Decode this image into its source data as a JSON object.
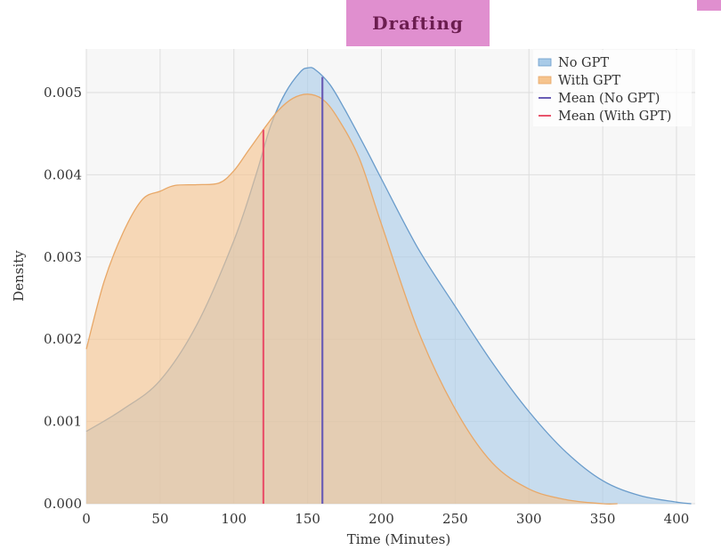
{
  "header": {
    "title": "Drafting"
  },
  "chart_data": {
    "type": "area",
    "title": "Drafting",
    "xlabel": "Time (Minutes)",
    "ylabel": "Density",
    "xlim": [
      0,
      410
    ],
    "ylim": [
      0,
      0.0055
    ],
    "x_ticks": [
      "0",
      "50",
      "100",
      "150",
      "200",
      "250",
      "300",
      "350",
      "400"
    ],
    "y_ticks": [
      "0.000",
      "0.001",
      "0.002",
      "0.003",
      "0.004",
      "0.005"
    ],
    "grid": true,
    "legend_position": "top-right",
    "series": [
      {
        "name": "No GPT",
        "color": "#a9cbe8",
        "edge_color": "#6a9ccb",
        "x": [
          0,
          25,
          50,
          75,
          100,
          115,
          125,
          135,
          145,
          150,
          155,
          165,
          175,
          190,
          200,
          225,
          250,
          275,
          300,
          325,
          350,
          375,
          400,
          410
        ],
        "y": [
          0.00088,
          0.00115,
          0.0015,
          0.00218,
          0.0032,
          0.004,
          0.0046,
          0.005,
          0.00525,
          0.0053,
          0.00528,
          0.0051,
          0.0048,
          0.0043,
          0.00395,
          0.0031,
          0.0024,
          0.00172,
          0.00112,
          0.00063,
          0.00028,
          0.0001,
          2e-05,
          0.0
        ],
        "mean": 160,
        "mean_color": "#6a5db5",
        "mean_label": "Mean (No GPT)"
      },
      {
        "name": "With GPT",
        "color": "#f6c48e",
        "edge_color": "#e8a868",
        "x": [
          0,
          12,
          25,
          38,
          50,
          60,
          75,
          90,
          100,
          110,
          120,
          130,
          140,
          150,
          160,
          170,
          185,
          200,
          225,
          250,
          275,
          300,
          325,
          350,
          360
        ],
        "y": [
          0.00188,
          0.0027,
          0.0033,
          0.0037,
          0.0038,
          0.00387,
          0.00388,
          0.0039,
          0.00405,
          0.0043,
          0.00455,
          0.00478,
          0.00493,
          0.00498,
          0.00492,
          0.0047,
          0.0042,
          0.0034,
          0.0021,
          0.00115,
          0.0005,
          0.00018,
          5e-05,
          0.0,
          0.0
        ],
        "mean": 120,
        "mean_color": "#e8546b",
        "mean_label": "Mean (With GPT)"
      }
    ]
  }
}
